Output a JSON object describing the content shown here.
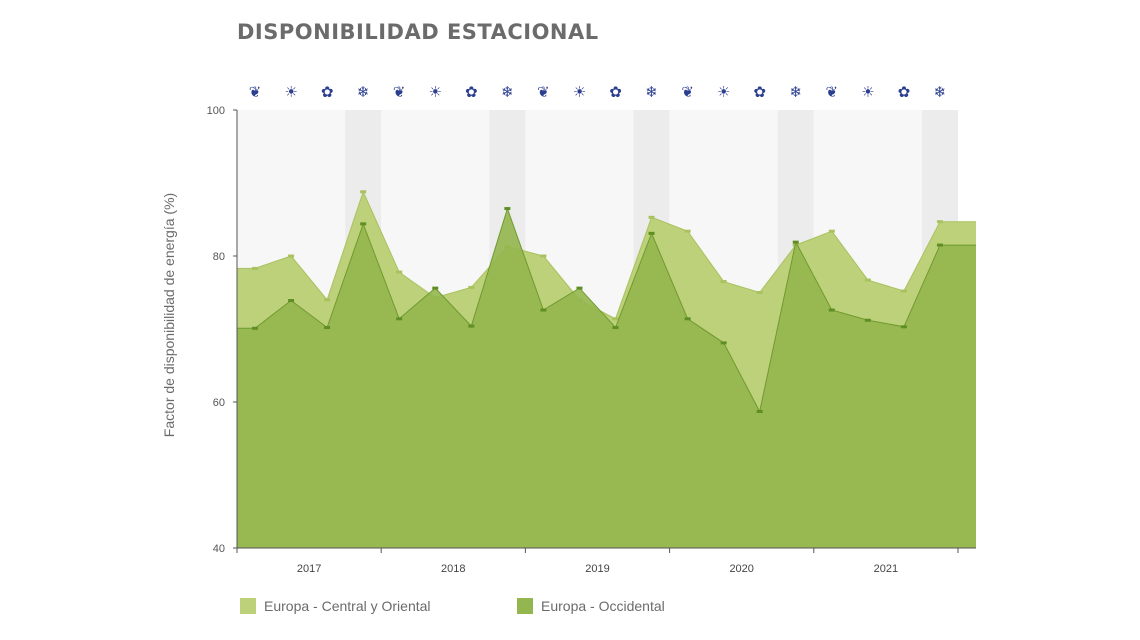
{
  "chart_data": {
    "type": "area",
    "title": "DISPONIBILIDAD ESTACIONAL",
    "ylabel": "Factor de disponibilidad de energía (%)",
    "xlabel": "",
    "ylim": [
      40,
      100
    ],
    "yticks": [
      40,
      60,
      80,
      100
    ],
    "year_labels": [
      "2017",
      "2018",
      "2019",
      "2020",
      "2021"
    ],
    "season_icons": [
      "leaf-icon",
      "sun-icon",
      "maple-leaf-icon",
      "snowflake-icon"
    ],
    "season_glyphs": [
      "❦",
      "☀",
      "✿",
      "❄"
    ],
    "icon_color": "#2c3e8f",
    "legend_position": "bottom",
    "grid": false,
    "series": [
      {
        "name": "Europa - Central y Oriental",
        "color": "#bdd07a",
        "values": [
          78.3,
          80,
          74,
          88.8,
          77.8,
          74.3,
          75.7,
          81.3,
          80,
          74,
          71.4,
          85.3,
          83.4,
          76.5,
          75,
          81.5,
          83.4,
          76.7,
          75.2,
          84.7,
          84.7
        ]
      },
      {
        "name": "Europa - Occidental",
        "color": "#93b64e",
        "values": [
          70.1,
          73.9,
          70.2,
          84.4,
          71.4,
          75.6,
          70.4,
          86.5,
          72.6,
          75.6,
          70.2,
          83.1,
          71.4,
          68.1,
          58.7,
          81.9,
          72.6,
          71.2,
          70.3,
          81.5,
          81.5
        ]
      }
    ]
  }
}
